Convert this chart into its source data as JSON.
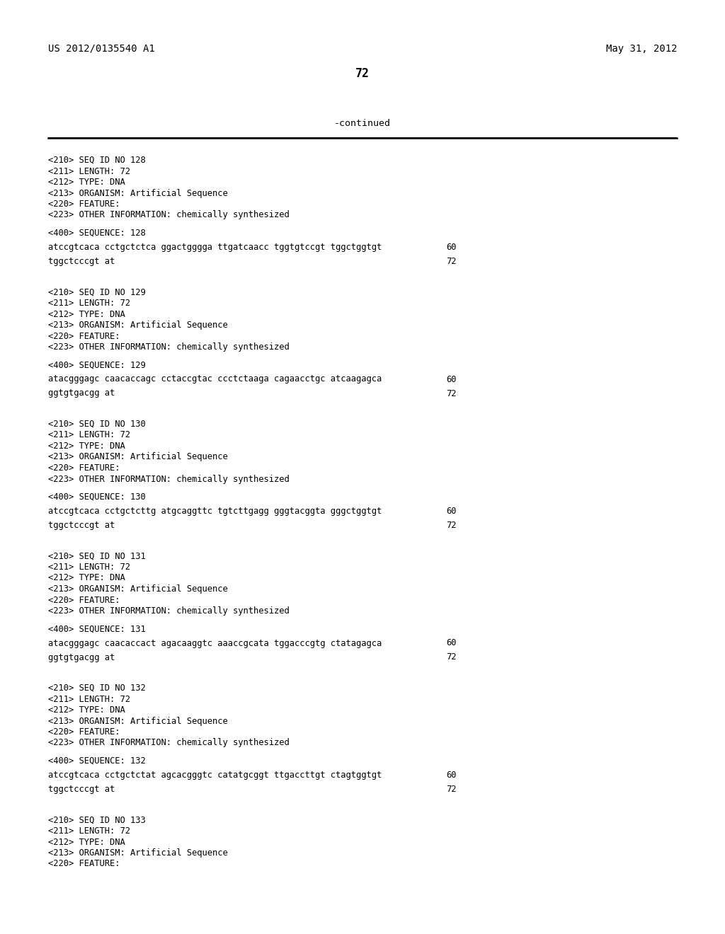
{
  "bg_color": "#ffffff",
  "header_left": "US 2012/0135540 A1",
  "header_right": "May 31, 2012",
  "page_number": "72",
  "continued_label": "-continued",
  "entries": [
    {
      "seq_id": "128",
      "length": "72",
      "type": "DNA",
      "organism": "Artificial Sequence",
      "other_info": "chemically synthesized",
      "sequence_line1": "atccgtcaca cctgctctca ggactgggga ttgatcaacc tggtgtccgt tggctggtgt",
      "seq_num1": "60",
      "sequence_line2": "tggctcccgt at",
      "seq_num2": "72"
    },
    {
      "seq_id": "129",
      "length": "72",
      "type": "DNA",
      "organism": "Artificial Sequence",
      "other_info": "chemically synthesized",
      "sequence_line1": "atacgggagc caacaccagc cctaccgtac ccctctaaga cagaacctgc atcaagagca",
      "seq_num1": "60",
      "sequence_line2": "ggtgtgacgg at",
      "seq_num2": "72"
    },
    {
      "seq_id": "130",
      "length": "72",
      "type": "DNA",
      "organism": "Artificial Sequence",
      "other_info": "chemically synthesized",
      "sequence_line1": "atccgtcaca cctgctcttg atgcaggttc tgtcttgagg gggtacggta gggctggtgt",
      "seq_num1": "60",
      "sequence_line2": "tggctcccgt at",
      "seq_num2": "72"
    },
    {
      "seq_id": "131",
      "length": "72",
      "type": "DNA",
      "organism": "Artificial Sequence",
      "other_info": "chemically synthesized",
      "sequence_line1": "atacgggagc caacaccact agacaaggtc aaaccgcata tggacccgtg ctatagagca",
      "seq_num1": "60",
      "sequence_line2": "ggtgtgacgg at",
      "seq_num2": "72"
    },
    {
      "seq_id": "132",
      "length": "72",
      "type": "DNA",
      "organism": "Artificial Sequence",
      "other_info": "chemically synthesized",
      "sequence_line1": "atccgtcaca cctgctctat agcacgggtc catatgcggt ttgaccttgt ctagtggtgt",
      "seq_num1": "60",
      "sequence_line2": "tggctcccgt at",
      "seq_num2": "72"
    },
    {
      "seq_id": "133",
      "length": "72",
      "type": "DNA",
      "organism": "Artificial Sequence",
      "other_info": "",
      "sequence_line1": "",
      "seq_num1": "",
      "sequence_line2": "",
      "seq_num2": ""
    }
  ]
}
